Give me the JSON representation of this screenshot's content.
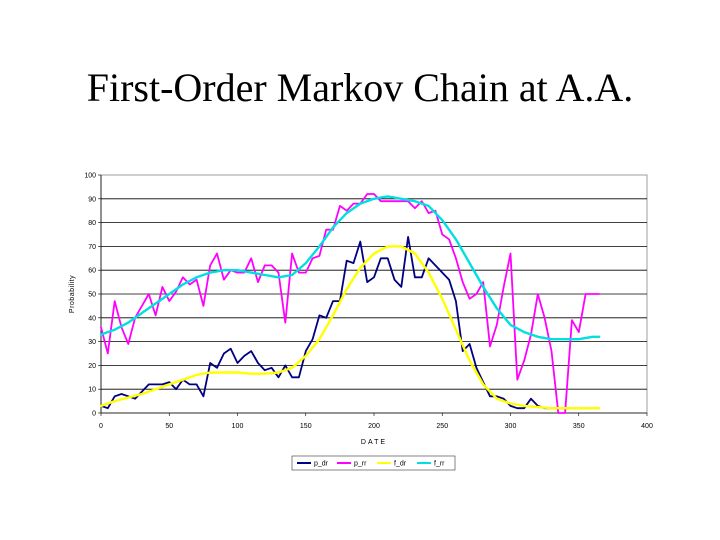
{
  "title": "First-Order Markov Chain at A.A.",
  "chart_data": {
    "type": "line",
    "xlabel": "DATE",
    "ylabel": "Probability",
    "xlim": [
      0,
      400
    ],
    "ylim": [
      0,
      100
    ],
    "xticks": [
      "0",
      "50",
      "100",
      "150",
      "200",
      "250",
      "300",
      "350",
      "400"
    ],
    "yticks": [
      "0",
      "10",
      "20",
      "30",
      "40",
      "50",
      "60",
      "70",
      "80",
      "90",
      "100"
    ],
    "grid": "horizontal",
    "legend_position": "bottom",
    "series": [
      {
        "name": "p_dr",
        "color": "#000080",
        "x": [
          0,
          5,
          10,
          15,
          20,
          25,
          30,
          35,
          40,
          45,
          50,
          55,
          60,
          65,
          70,
          75,
          80,
          85,
          90,
          95,
          100,
          105,
          110,
          115,
          120,
          125,
          130,
          135,
          140,
          145,
          150,
          155,
          160,
          165,
          170,
          175,
          180,
          185,
          190,
          195,
          200,
          205,
          210,
          215,
          220,
          225,
          230,
          235,
          240,
          245,
          250,
          255,
          260,
          265,
          270,
          275,
          280,
          285,
          290,
          295,
          300,
          305,
          310,
          315,
          320,
          325,
          330,
          335,
          340,
          345,
          350,
          355,
          360,
          365
        ],
        "y": [
          3,
          2,
          7,
          8,
          7,
          6,
          9,
          12,
          12,
          12,
          13,
          10,
          14,
          12,
          12,
          7,
          21,
          19,
          25,
          27,
          21,
          24,
          26,
          21,
          18,
          19,
          15,
          20,
          15,
          15,
          26,
          31,
          41,
          40,
          47,
          47,
          64,
          63,
          72,
          55,
          57,
          65,
          65,
          56,
          53,
          74,
          57,
          57,
          65,
          62,
          59,
          56,
          47,
          26,
          29,
          19,
          13,
          7,
          7,
          6,
          3,
          2,
          2,
          6,
          3,
          2,
          2,
          2,
          2,
          2,
          2,
          2,
          2,
          2
        ]
      },
      {
        "name": "p_rr",
        "color": "#ff00ff",
        "x": [
          0,
          5,
          10,
          15,
          20,
          25,
          30,
          35,
          40,
          45,
          50,
          55,
          60,
          65,
          70,
          75,
          80,
          85,
          90,
          95,
          100,
          105,
          110,
          115,
          120,
          125,
          130,
          135,
          140,
          145,
          150,
          155,
          160,
          165,
          170,
          175,
          180,
          185,
          190,
          195,
          200,
          205,
          210,
          215,
          220,
          225,
          230,
          235,
          240,
          245,
          250,
          255,
          260,
          265,
          270,
          275,
          280,
          285,
          290,
          295,
          300,
          305,
          310,
          315,
          320,
          325,
          330,
          335,
          340,
          345,
          350,
          355,
          360,
          365
        ],
        "y": [
          36,
          25,
          47,
          36,
          29,
          40,
          45,
          50,
          41,
          53,
          47,
          51,
          57,
          54,
          56,
          45,
          62,
          67,
          56,
          60,
          59,
          59,
          65,
          55,
          62,
          62,
          59,
          38,
          67,
          59,
          59,
          65,
          66,
          77,
          77,
          87,
          85,
          88,
          88,
          92,
          92,
          89,
          89,
          89,
          89,
          89,
          86,
          89,
          84,
          85,
          75,
          73,
          65,
          55,
          48,
          50,
          55,
          28,
          37,
          53,
          67,
          14,
          22,
          33,
          50,
          40,
          26,
          0,
          0,
          39,
          34,
          50,
          50,
          50
        ]
      },
      {
        "name": "f_dr",
        "color": "#ffff00",
        "x": [
          0,
          10,
          20,
          30,
          40,
          50,
          60,
          70,
          80,
          90,
          100,
          110,
          120,
          130,
          140,
          150,
          160,
          170,
          180,
          190,
          200,
          210,
          220,
          230,
          240,
          250,
          260,
          270,
          280,
          290,
          300,
          310,
          320,
          330,
          340,
          350,
          360,
          365
        ],
        "y": [
          3,
          5,
          6.5,
          8,
          10,
          12,
          14,
          16,
          17,
          17,
          17,
          16.5,
          16.5,
          17,
          19,
          24,
          31,
          41,
          52,
          61,
          67,
          70,
          70,
          67,
          59,
          48,
          35,
          22,
          12,
          6,
          4,
          3,
          2.5,
          2,
          2,
          2,
          2,
          2
        ]
      },
      {
        "name": "f_rr",
        "color": "#00e0e0",
        "x": [
          0,
          10,
          20,
          30,
          40,
          50,
          60,
          70,
          80,
          90,
          100,
          110,
          120,
          130,
          140,
          150,
          160,
          170,
          180,
          190,
          200,
          210,
          220,
          230,
          240,
          250,
          260,
          270,
          280,
          290,
          300,
          310,
          320,
          330,
          340,
          350,
          360,
          365
        ],
        "y": [
          33,
          35,
          38,
          42,
          46,
          50,
          54,
          57,
          59,
          60,
          60,
          59,
          58,
          57,
          58,
          63,
          70,
          78,
          84,
          88,
          90,
          91,
          90,
          89,
          87,
          81,
          73,
          63,
          53,
          44,
          37,
          34,
          32,
          31,
          31,
          31,
          32,
          32
        ]
      }
    ]
  }
}
